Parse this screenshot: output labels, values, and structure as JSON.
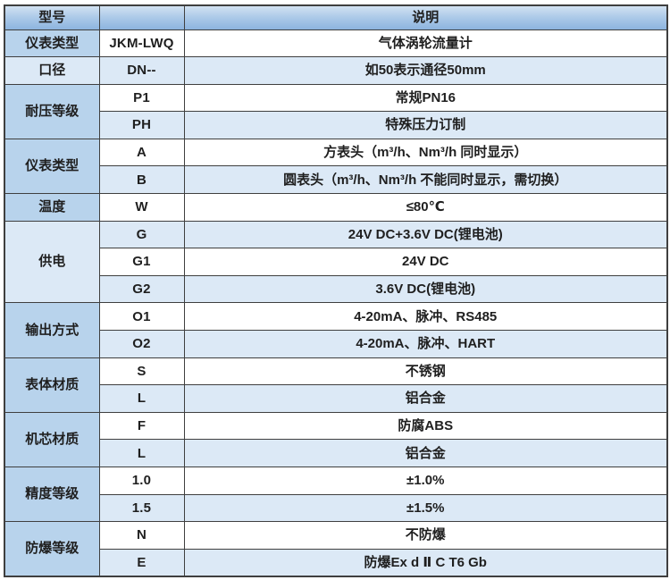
{
  "table": {
    "headers": {
      "model": "型号",
      "code": "",
      "description": "说明"
    },
    "groups": [
      {
        "category": "仪表类型",
        "rows": [
          {
            "code": "JKM-LWQ",
            "desc": "气体涡轮流量计"
          }
        ]
      },
      {
        "category": "口径",
        "rows": [
          {
            "code": "DN--",
            "desc": "如50表示通径50mm"
          }
        ]
      },
      {
        "category": "耐压等级",
        "rows": [
          {
            "code": "P1",
            "desc": "常规PN16"
          },
          {
            "code": "PH",
            "desc": "特殊压力订制"
          }
        ]
      },
      {
        "category": "仪表类型",
        "rows": [
          {
            "code": "A",
            "desc": "方表头（m³/h、Nm³/h 同时显示）"
          },
          {
            "code": "B",
            "desc": "圆表头（m³/h、Nm³/h 不能同时显示，需切换）"
          }
        ]
      },
      {
        "category": "温度",
        "rows": [
          {
            "code": "W",
            "desc": "≤80℃"
          }
        ]
      },
      {
        "category": "供电",
        "rows": [
          {
            "code": "G",
            "desc": "24V DC+3.6V DC(锂电池)"
          },
          {
            "code": "G1",
            "desc": "24V DC"
          },
          {
            "code": "G2",
            "desc": "3.6V DC(锂电池)"
          }
        ]
      },
      {
        "category": "输出方式",
        "rows": [
          {
            "code": "O1",
            "desc": "4-20mA、脉冲、RS485"
          },
          {
            "code": "O2",
            "desc": "4-20mA、脉冲、HART"
          }
        ]
      },
      {
        "category": "表体材质",
        "rows": [
          {
            "code": "S",
            "desc": "不锈钢"
          },
          {
            "code": "L",
            "desc": "铝合金"
          }
        ]
      },
      {
        "category": "机芯材质",
        "rows": [
          {
            "code": "F",
            "desc": "防腐ABS"
          },
          {
            "code": "L",
            "desc": "铝合金"
          }
        ]
      },
      {
        "category": "精度等级",
        "rows": [
          {
            "code": "1.0",
            "desc": "±1.0%"
          },
          {
            "code": "1.5",
            "desc": "±1.5%"
          }
        ]
      },
      {
        "category": "防爆等级",
        "rows": [
          {
            "code": "N",
            "desc": "不防爆"
          },
          {
            "code": "E",
            "desc": "防爆Ex d Ⅱ C T6 Gb"
          }
        ]
      }
    ]
  },
  "colors": {
    "header_gradient_top": "#d2e2f2",
    "header_gradient_bottom": "#8cb4df",
    "category_bg": "#b8d3ec",
    "zebra_bg": "#dce9f6",
    "row_bg": "#ffffff",
    "border": "#3f3f3f",
    "text": "#1f1f1f"
  }
}
